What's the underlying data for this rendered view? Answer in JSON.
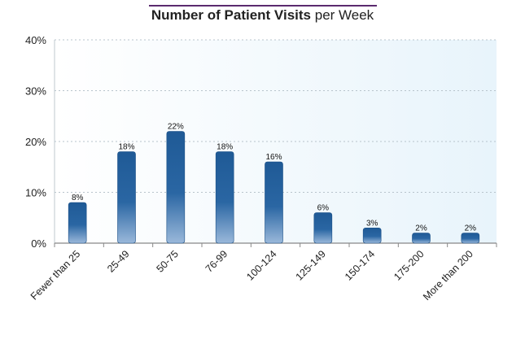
{
  "chart_data": {
    "type": "bar",
    "title_bold": "Number of Patient Visits",
    "title_normal": "per Week",
    "xlabel": "",
    "ylabel": "",
    "ylim": [
      0,
      40
    ],
    "yticks": [
      "0%",
      "10%",
      "20%",
      "30%",
      "40%"
    ],
    "ytick_values": [
      0,
      10,
      20,
      30,
      40
    ],
    "categories": [
      "Fewer than 25",
      "25-49",
      "50-75",
      "76-99",
      "100-124",
      "125-149",
      "150-174",
      "175-200",
      "More than 200"
    ],
    "values": [
      8,
      18,
      22,
      18,
      16,
      6,
      3,
      2,
      2
    ],
    "data_labels": [
      "8%",
      "18%",
      "22%",
      "18%",
      "16%",
      "6%",
      "3%",
      "2%",
      "2%"
    ],
    "grid": true,
    "colors": {
      "bar_top": "#1f5a96",
      "bar_bottom": "#8fb0d6",
      "title_rule": "#5b2a6e",
      "plot_bg_left": "#ffffff",
      "plot_bg_right": "#e8f4fb",
      "grid": "#b8c4cc"
    }
  }
}
